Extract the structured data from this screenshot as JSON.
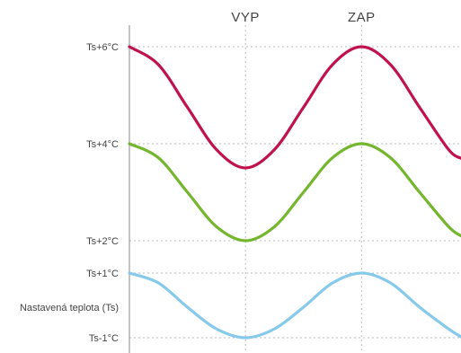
{
  "chart_data": {
    "type": "line",
    "title": "",
    "xlabel": "",
    "ylabel": "",
    "grid": true,
    "legend": "none",
    "top_labels": [
      {
        "text": "VYP",
        "x": 0.35
      },
      {
        "text": "ZAP",
        "x": 0.7
      }
    ],
    "y_axis_labels": [
      {
        "text": "Ts+6°C",
        "value": 6,
        "gridline": true
      },
      {
        "text": "Ts+4°C",
        "value": 4,
        "gridline": true
      },
      {
        "text": "Ts+2°C",
        "value": 2,
        "gridline": true
      },
      {
        "text": "Ts+1°C",
        "value": 1,
        "gridline": true
      },
      {
        "text": "Nastavená teplota (Ts)",
        "value": 0,
        "gridline": false
      },
      {
        "text": "Ts-1°C",
        "value": -1,
        "gridline": true
      }
    ],
    "series": [
      {
        "color": "#c0124e",
        "x": [
          0,
          0.0875,
          0.175,
          0.2625,
          0.35,
          0.4375,
          0.525,
          0.6125,
          0.7,
          0.7875,
          0.875,
          0.9625,
          1.0
        ],
        "values": [
          6,
          5.63,
          4.75,
          3.88,
          3.5,
          3.88,
          4.75,
          5.63,
          6,
          5.63,
          4.75,
          3.88,
          3.7
        ]
      },
      {
        "color": "#74b62e",
        "x": [
          0,
          0.0875,
          0.175,
          0.2625,
          0.35,
          0.4375,
          0.525,
          0.6125,
          0.7,
          0.7875,
          0.875,
          0.9625,
          1.0
        ],
        "values": [
          4,
          3.71,
          3.0,
          2.29,
          2.0,
          2.29,
          3.0,
          3.71,
          4,
          3.71,
          3.0,
          2.29,
          2.1
        ]
      },
      {
        "color": "#86c9ea",
        "x": [
          0,
          0.0875,
          0.175,
          0.2625,
          0.35,
          0.4375,
          0.525,
          0.6125,
          0.7,
          0.7875,
          0.875,
          0.9625,
          1.0
        ],
        "values": [
          1,
          0.71,
          0.0,
          -0.71,
          -1.0,
          -0.71,
          0.0,
          0.71,
          1,
          0.71,
          0.0,
          -0.71,
          -0.97
        ]
      }
    ],
    "axis_color": "#888888",
    "grid_color": "#bbbbbb"
  }
}
